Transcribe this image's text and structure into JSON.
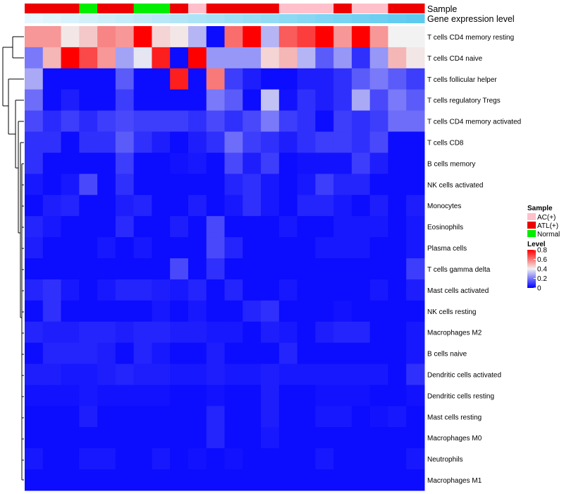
{
  "chart_data": {
    "type": "heatmap",
    "annotation_tracks": [
      {
        "name": "Sample",
        "values": [
          "ATL(+)",
          "ATL(+)",
          "ATL(+)",
          "Normal",
          "ATL(+)",
          "ATL(+)",
          "Normal",
          "Normal",
          "ATL(+)",
          "AC(+)",
          "ATL(+)",
          "ATL(+)",
          "ATL(+)",
          "ATL(+)",
          "AC(+)",
          "AC(+)",
          "AC(+)",
          "ATL(+)",
          "AC(+)",
          "AC(+)",
          "ATL(+)",
          "ATL(+)"
        ]
      },
      {
        "name": "Gene expression level",
        "values": [
          0.02,
          0.06,
          0.1,
          0.14,
          0.18,
          0.22,
          0.26,
          0.3,
          0.34,
          0.38,
          0.42,
          0.46,
          0.5,
          0.54,
          0.58,
          0.62,
          0.66,
          0.7,
          0.74,
          0.78,
          0.82,
          0.86
        ]
      }
    ],
    "rows": [
      "T cells CD4 memory resting",
      "T cells CD4 naive",
      "T cells follicular helper",
      "T cells regulatory  Tregs",
      "T cells CD4 memory activated",
      "T cells CD8",
      "B cells memory",
      "NK cells activated",
      "Monocytes",
      "Eosinophils",
      "Plasma cells",
      "T cells gamma delta",
      "Mast cells activated",
      "NK cells resting",
      "Macrophages M2",
      "B cells naive",
      "Dendritic cells activated",
      "Dendritic cells resting",
      "Mast cells resting",
      "Macrophages M0",
      "Neutrophils",
      "Macrophages M1"
    ],
    "values": [
      [
        0.55,
        0.55,
        0.42,
        0.47,
        0.58,
        0.55,
        0.8,
        0.45,
        0.42,
        0.3,
        0.02,
        0.62,
        0.8,
        0.3,
        0.65,
        0.7,
        0.8,
        0.55,
        0.8,
        0.55,
        0.4,
        0.4
      ],
      [
        0.2,
        0.5,
        0.8,
        0.68,
        0.55,
        0.27,
        0.38,
        0.75,
        0.02,
        0.8,
        0.25,
        0.25,
        0.25,
        0.45,
        0.5,
        0.3,
        0.15,
        0.25,
        0.08,
        0.25,
        0.5,
        0.42
      ],
      [
        0.28,
        0.02,
        0.02,
        0.02,
        0.02,
        0.15,
        0.02,
        0.02,
        0.75,
        0.02,
        0.6,
        0.1,
        0.05,
        0.02,
        0.02,
        0.05,
        0.05,
        0.08,
        0.15,
        0.2,
        0.15,
        0.1
      ],
      [
        0.18,
        0.02,
        0.05,
        0.02,
        0.02,
        0.1,
        0.02,
        0.02,
        0.02,
        0.02,
        0.2,
        0.15,
        0.02,
        0.32,
        0.03,
        0.08,
        0.05,
        0.08,
        0.28,
        0.12,
        0.2,
        0.15
      ],
      [
        0.12,
        0.07,
        0.1,
        0.07,
        0.1,
        0.12,
        0.1,
        0.1,
        0.1,
        0.08,
        0.12,
        0.08,
        0.12,
        0.2,
        0.1,
        0.08,
        0.02,
        0.1,
        0.08,
        0.1,
        0.18,
        0.18
      ],
      [
        0.08,
        0.08,
        0.02,
        0.08,
        0.08,
        0.15,
        0.08,
        0.05,
        0.02,
        0.05,
        0.08,
        0.18,
        0.1,
        0.08,
        0.05,
        0.08,
        0.1,
        0.1,
        0.08,
        0.12,
        0.02,
        0.02
      ],
      [
        0.08,
        0.02,
        0.02,
        0.02,
        0.02,
        0.1,
        0.02,
        0.02,
        0.03,
        0.04,
        0.02,
        0.12,
        0.05,
        0.1,
        0.02,
        0.03,
        0.03,
        0.03,
        0.1,
        0.05,
        0.02,
        0.02
      ],
      [
        0.04,
        0.02,
        0.04,
        0.12,
        0.02,
        0.08,
        0.02,
        0.02,
        0.02,
        0.02,
        0.02,
        0.06,
        0.08,
        0.04,
        0.02,
        0.04,
        0.1,
        0.06,
        0.06,
        0.02,
        0.02,
        0.02
      ],
      [
        0.02,
        0.05,
        0.06,
        0.02,
        0.02,
        0.05,
        0.06,
        0.02,
        0.02,
        0.05,
        0.02,
        0.04,
        0.08,
        0.04,
        0.02,
        0.06,
        0.06,
        0.04,
        0.02,
        0.05,
        0.02,
        0.05
      ],
      [
        0.06,
        0.04,
        0.02,
        0.02,
        0.02,
        0.07,
        0.02,
        0.02,
        0.05,
        0.02,
        0.12,
        0.02,
        0.02,
        0.02,
        0.04,
        0.02,
        0.02,
        0.04,
        0.04,
        0.04,
        0.02,
        0.04
      ],
      [
        0.05,
        0.02,
        0.02,
        0.02,
        0.04,
        0.02,
        0.04,
        0.02,
        0.02,
        0.02,
        0.12,
        0.06,
        0.02,
        0.02,
        0.02,
        0.02,
        0.04,
        0.04,
        0.04,
        0.02,
        0.02,
        0.04
      ],
      [
        0.02,
        0.02,
        0.02,
        0.02,
        0.02,
        0.02,
        0.02,
        0.02,
        0.12,
        0.02,
        0.08,
        0.02,
        0.02,
        0.02,
        0.02,
        0.02,
        0.02,
        0.02,
        0.02,
        0.02,
        0.02,
        0.1
      ],
      [
        0.06,
        0.08,
        0.04,
        0.02,
        0.04,
        0.06,
        0.06,
        0.05,
        0.04,
        0.06,
        0.02,
        0.06,
        0.02,
        0.02,
        0.04,
        0.02,
        0.02,
        0.02,
        0.02,
        0.04,
        0.02,
        0.05
      ],
      [
        0.02,
        0.08,
        0.02,
        0.02,
        0.02,
        0.02,
        0.02,
        0.04,
        0.02,
        0.04,
        0.02,
        0.02,
        0.06,
        0.08,
        0.02,
        0.02,
        0.02,
        0.03,
        0.02,
        0.02,
        0.02,
        0.02
      ],
      [
        0.06,
        0.05,
        0.05,
        0.06,
        0.06,
        0.05,
        0.06,
        0.06,
        0.05,
        0.05,
        0.04,
        0.04,
        0.02,
        0.05,
        0.04,
        0.02,
        0.05,
        0.06,
        0.06,
        0.02,
        0.02,
        0.04
      ],
      [
        0.02,
        0.06,
        0.06,
        0.06,
        0.05,
        0.02,
        0.06,
        0.04,
        0.02,
        0.02,
        0.05,
        0.02,
        0.02,
        0.02,
        0.06,
        0.02,
        0.02,
        0.02,
        0.02,
        0.02,
        0.02,
        0.04
      ],
      [
        0.05,
        0.05,
        0.04,
        0.04,
        0.05,
        0.06,
        0.05,
        0.05,
        0.04,
        0.04,
        0.05,
        0.04,
        0.04,
        0.05,
        0.04,
        0.04,
        0.04,
        0.04,
        0.04,
        0.04,
        0.02,
        0.08
      ],
      [
        0.03,
        0.03,
        0.03,
        0.04,
        0.03,
        0.03,
        0.03,
        0.03,
        0.02,
        0.02,
        0.03,
        0.02,
        0.02,
        0.05,
        0.02,
        0.02,
        0.03,
        0.03,
        0.03,
        0.02,
        0.02,
        0.03
      ],
      [
        0.02,
        0.02,
        0.02,
        0.05,
        0.02,
        0.02,
        0.02,
        0.02,
        0.02,
        0.02,
        0.06,
        0.02,
        0.02,
        0.05,
        0.02,
        0.02,
        0.04,
        0.04,
        0.02,
        0.03,
        0.04,
        0.02
      ],
      [
        0.02,
        0.02,
        0.02,
        0.02,
        0.02,
        0.02,
        0.02,
        0.02,
        0.02,
        0.02,
        0.06,
        0.02,
        0.02,
        0.04,
        0.02,
        0.02,
        0.02,
        0.02,
        0.02,
        0.02,
        0.02,
        0.02
      ],
      [
        0.04,
        0.02,
        0.02,
        0.04,
        0.04,
        0.02,
        0.02,
        0.04,
        0.02,
        0.03,
        0.02,
        0.03,
        0.02,
        0.02,
        0.02,
        0.02,
        0.04,
        0.02,
        0.02,
        0.02,
        0.02,
        0.04
      ],
      [
        0.02,
        0.02,
        0.02,
        0.02,
        0.02,
        0.02,
        0.02,
        0.02,
        0.02,
        0.02,
        0.02,
        0.02,
        0.02,
        0.02,
        0.02,
        0.02,
        0.02,
        0.02,
        0.02,
        0.02,
        0.02,
        0.02
      ]
    ],
    "legend": {
      "sample_title": "Sample",
      "sample_entries": [
        {
          "label": "AC(+)",
          "color": "#ffc0cb"
        },
        {
          "label": "ATL(+)",
          "color": "#ee0000"
        },
        {
          "label": "Normal",
          "color": "#00ee00"
        }
      ],
      "level_title": "Level",
      "level_ticks": [
        "0.8",
        "0.6",
        "0.4",
        "0.2",
        "0"
      ],
      "placement": "right"
    },
    "color_scale": {
      "low": "#0000ff",
      "mid": "#f2f2f2",
      "high": "#ff0000",
      "domain": [
        0,
        0.8
      ],
      "mid_value": 0.4
    },
    "gene_expression_colors": {
      "low": "#eaf7fc",
      "high": "#48c3ee"
    },
    "dendrogram": "hierarchical clustering tree of rows on the left"
  }
}
